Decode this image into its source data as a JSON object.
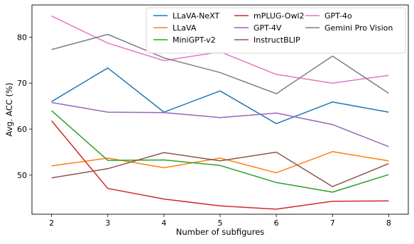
{
  "chart_data": {
    "type": "line",
    "title": "",
    "xlabel": "Number of subfigures",
    "ylabel": "Avg. ACC (%)",
    "x": [
      2,
      3,
      4,
      5,
      6,
      7,
      8
    ],
    "xlim": [
      1.65,
      8.35
    ],
    "ylim": [
      41.5,
      87
    ],
    "yticks": [
      50,
      60,
      70,
      80
    ],
    "grid": false,
    "legend_position": "top-right",
    "series": [
      {
        "name": "LLaVA-NeXT",
        "color": "#1f77b4",
        "values": [
          66.0,
          73.3,
          63.7,
          68.3,
          61.2,
          65.9,
          63.7
        ]
      },
      {
        "name": "LLaVA",
        "color": "#ff7f0e",
        "values": [
          52.0,
          53.7,
          51.6,
          53.7,
          50.5,
          55.1,
          53.1
        ]
      },
      {
        "name": "MiniGPT-v2",
        "color": "#2ca02c",
        "values": [
          64.0,
          53.2,
          53.3,
          52.1,
          48.4,
          46.3,
          50.1
        ]
      },
      {
        "name": "mPLUG-Owl2",
        "color": "#d62728",
        "values": [
          61.8,
          47.1,
          44.8,
          43.3,
          42.6,
          44.3,
          44.4
        ]
      },
      {
        "name": "GPT-4V",
        "color": "#9467bd",
        "values": [
          65.8,
          63.7,
          63.6,
          62.5,
          63.5,
          61.0,
          56.2
        ]
      },
      {
        "name": "InstructBLIP",
        "color": "#8c564b",
        "values": [
          49.4,
          51.4,
          54.9,
          53.1,
          55.0,
          47.5,
          52.5
        ]
      },
      {
        "name": "GPT-4o",
        "color": "#e377c2",
        "values": [
          84.6,
          78.7,
          74.9,
          76.8,
          71.9,
          70.0,
          71.7
        ]
      },
      {
        "name": "Gemini Pro Vision",
        "color": "#7f7f7f",
        "values": [
          77.3,
          80.6,
          75.5,
          72.3,
          67.7,
          75.9,
          67.8
        ]
      }
    ]
  }
}
